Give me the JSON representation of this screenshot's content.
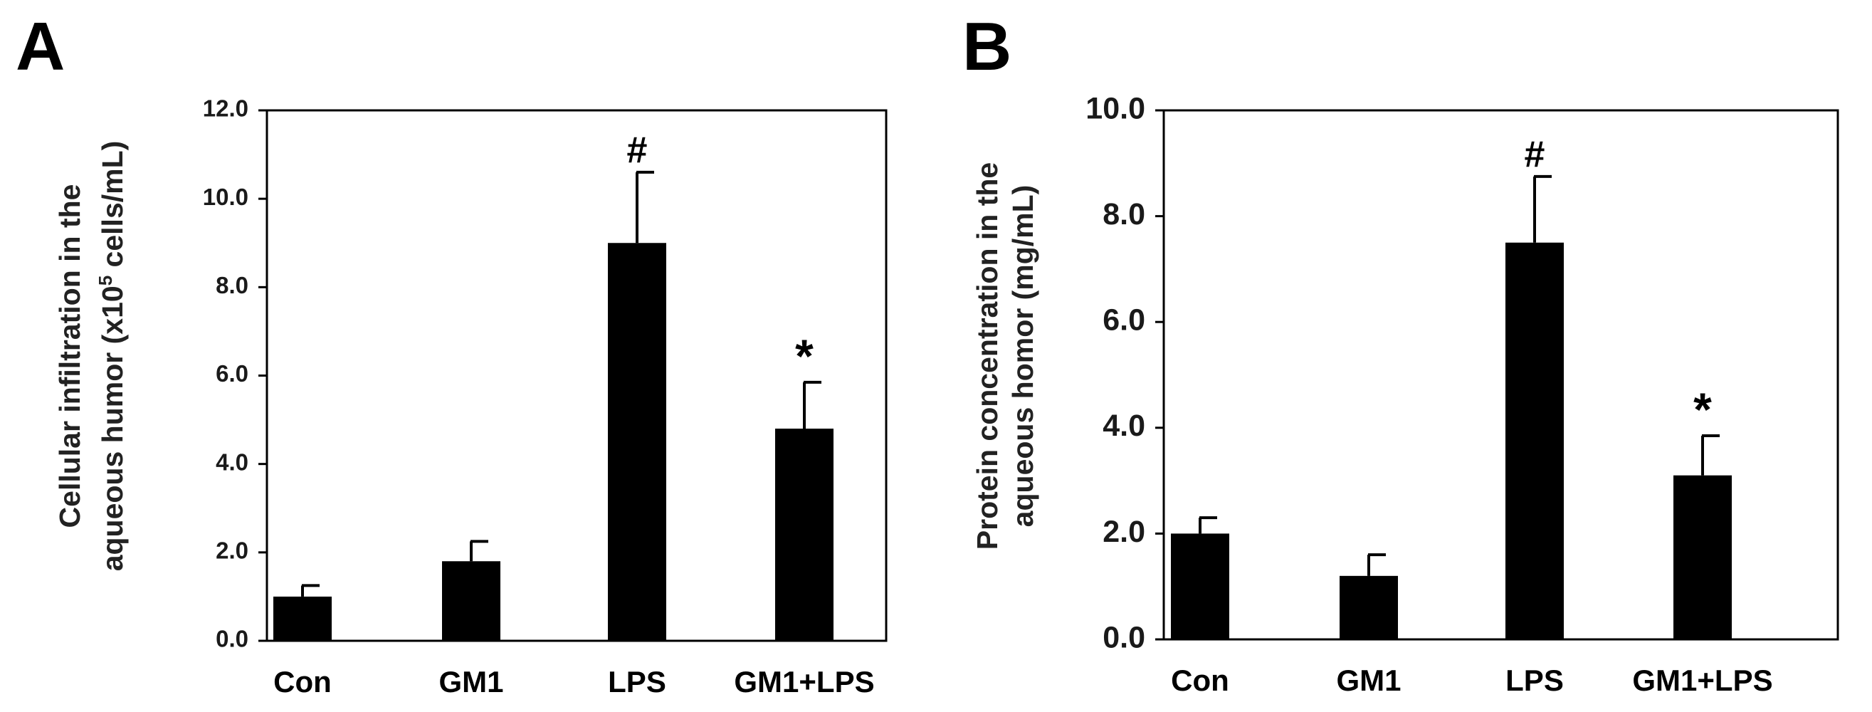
{
  "chart_data": [
    {
      "panel_label": "A",
      "type": "bar",
      "categories": [
        "Con",
        "GM1",
        "LPS",
        "GM1+LPS"
      ],
      "values": [
        1.0,
        1.8,
        9.0,
        4.8
      ],
      "error": [
        0.25,
        0.45,
        1.6,
        1.05
      ],
      "annotations": [
        "",
        "",
        "#",
        "*"
      ],
      "ylabel_line1": "Cellular infiltration in the",
      "ylabel_line2_pre": "aqueous humor (x10",
      "ylabel_sup": "5",
      "ylabel_line2_post": " cells/mL)",
      "ylim": [
        0,
        12
      ],
      "yticks": [
        0,
        2,
        4,
        6,
        8,
        10,
        12
      ],
      "ytick_labels": [
        "0.0",
        "2.0",
        "4.0",
        "6.0",
        "8.0",
        "10.0",
        "12.0"
      ],
      "bar_color": "#000000",
      "grid": false
    },
    {
      "panel_label": "B",
      "type": "bar",
      "categories": [
        "Con",
        "GM1",
        "LPS",
        "GM1+LPS"
      ],
      "values": [
        2.0,
        1.2,
        7.5,
        3.1
      ],
      "error": [
        0.3,
        0.4,
        1.25,
        0.75
      ],
      "annotations": [
        "",
        "",
        "#",
        "*"
      ],
      "ylabel_line1": "Protein concentration in the",
      "ylabel_line2": "aqueous homor (mg/mL)",
      "ylim": [
        0,
        10
      ],
      "yticks": [
        0,
        2,
        4,
        6,
        8,
        10
      ],
      "ytick_labels": [
        "0.0",
        "2.0",
        "4.0",
        "6.0",
        "8.0",
        "10.0"
      ],
      "bar_color": "#000000",
      "grid": false
    }
  ]
}
